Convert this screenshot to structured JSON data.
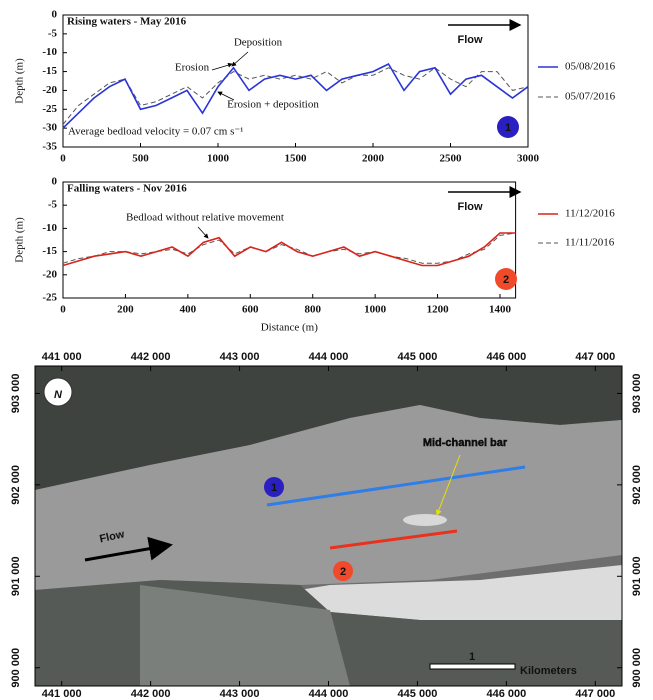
{
  "chart_data": [
    {
      "type": "line",
      "title": "Rising waters - May 2016",
      "ylabel": "Depth (m)",
      "annotations": [
        "Deposition",
        "Erosion",
        "Erosion + deposition",
        "Average bedload velocity = 0.07 cm s⁻¹"
      ],
      "flow_label": "Flow",
      "badge": "1",
      "x": [
        0,
        100,
        200,
        300,
        400,
        500,
        600,
        700,
        800,
        900,
        1000,
        1100,
        1200,
        1300,
        1400,
        1500,
        1600,
        1700,
        1800,
        1900,
        2000,
        2100,
        2200,
        2300,
        2400,
        2500,
        2600,
        2700,
        2800,
        2900,
        3000
      ],
      "series": [
        {
          "name": "05/08/2016",
          "color": "#2a35d8",
          "dash": false,
          "values": [
            -30,
            -26,
            -22,
            -19,
            -17,
            -25,
            -24,
            -22,
            -20,
            -26,
            -19,
            -14,
            -20,
            -17,
            -16,
            -17,
            -16,
            -20,
            -17,
            -16,
            -15,
            -13,
            -20,
            -15,
            -14,
            -21,
            -17,
            -16,
            -19,
            -22,
            -19
          ]
        },
        {
          "name": "05/07/2016",
          "color": "#555555",
          "dash": true,
          "values": [
            -29,
            -24,
            -21,
            -18,
            -17,
            -24,
            -23,
            -21,
            -19,
            -22,
            -18,
            -15,
            -17,
            -16,
            -17,
            -16,
            -17,
            -15,
            -18,
            -16,
            -16,
            -14,
            -16,
            -17,
            -14,
            -17,
            -19,
            -15,
            -15,
            -20,
            -19
          ]
        }
      ],
      "xlim": [
        0,
        3000
      ],
      "ylim": [
        -35,
        0
      ],
      "xticks": [
        0,
        500,
        1000,
        1500,
        2000,
        2500,
        3000
      ],
      "yticks": [
        0,
        -5,
        -10,
        -15,
        -20,
        -25,
        -30,
        -35
      ]
    },
    {
      "type": "line",
      "title": "Falling waters - Nov 2016",
      "ylabel": "Depth (m)",
      "xlabel": "Distance (m)",
      "annotations": [
        "Bedload without relative movement"
      ],
      "flow_label": "Flow",
      "badge": "2",
      "x": [
        0,
        50,
        100,
        150,
        200,
        250,
        300,
        350,
        400,
        450,
        500,
        550,
        600,
        650,
        700,
        750,
        800,
        850,
        900,
        950,
        1000,
        1050,
        1100,
        1150,
        1200,
        1250,
        1300,
        1350,
        1400,
        1450
      ],
      "series": [
        {
          "name": "11/12/2016",
          "color": "#d8241c",
          "dash": false,
          "values": [
            -18,
            -17,
            -16,
            -15.5,
            -15,
            -16,
            -15,
            -14,
            -16,
            -13,
            -12,
            -16,
            -14,
            -15,
            -13,
            -15,
            -16,
            -15,
            -14,
            -16,
            -15,
            -16,
            -17,
            -18,
            -18,
            -17,
            -16,
            -14,
            -11,
            -11
          ]
        },
        {
          "name": "11/11/2016",
          "color": "#555555",
          "dash": true,
          "values": [
            -17.5,
            -16.5,
            -16,
            -15,
            -15,
            -15.5,
            -15,
            -14.5,
            -15.5,
            -13.5,
            -12.5,
            -15.5,
            -14,
            -15,
            -13.5,
            -14.5,
            -16,
            -15,
            -14.5,
            -15.5,
            -15,
            -16,
            -16.5,
            -17.5,
            -17.5,
            -17,
            -15.5,
            -14.5,
            -11.5,
            -11
          ]
        }
      ],
      "xlim": [
        0,
        1450
      ],
      "ylim": [
        -25,
        0
      ],
      "xticks": [
        0,
        200,
        400,
        600,
        800,
        1000,
        1200,
        1400
      ],
      "yticks": [
        0,
        -5,
        -10,
        -15,
        -20,
        -25
      ]
    }
  ],
  "map": {
    "xticks": [
      {
        "value": 441000,
        "label": "441 000"
      },
      {
        "value": 442000,
        "label": "442 000"
      },
      {
        "value": 443000,
        "label": "443 000"
      },
      {
        "value": 444000,
        "label": "444 000"
      },
      {
        "value": 445000,
        "label": "445 000"
      },
      {
        "value": 446000,
        "label": "446 000"
      },
      {
        "value": 447000,
        "label": "447 000"
      }
    ],
    "yticks": [
      {
        "value": 903000,
        "label": "903 000"
      },
      {
        "value": 902000,
        "label": "902 000"
      },
      {
        "value": 901000,
        "label": "901 000"
      },
      {
        "value": 900000,
        "label": "900 000"
      }
    ],
    "xlim": [
      440700,
      447300
    ],
    "ylim": [
      899800,
      903300
    ],
    "north": "N",
    "bar_label": "Mid-channel bar",
    "flow_label": "Flow",
    "transects": [
      "1",
      "2"
    ],
    "scale_value": "1",
    "scale_unit": "Kilometers"
  }
}
